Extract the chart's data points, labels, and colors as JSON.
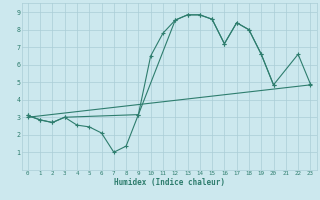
{
  "xlabel": "Humidex (Indice chaleur)",
  "bg_color": "#cce8ee",
  "line_color": "#2e7d6e",
  "grid_color": "#aacdd6",
  "xlim": [
    -0.5,
    23.5
  ],
  "ylim": [
    0,
    9.5
  ],
  "xticks": [
    0,
    1,
    2,
    3,
    4,
    5,
    6,
    7,
    8,
    9,
    10,
    11,
    12,
    13,
    14,
    15,
    16,
    17,
    18,
    19,
    20,
    21,
    22,
    23
  ],
  "yticks": [
    1,
    2,
    3,
    4,
    5,
    6,
    7,
    8,
    9
  ],
  "line1_x": [
    0,
    1,
    2,
    3,
    4,
    5,
    6,
    7,
    8,
    9,
    10,
    11,
    12,
    13,
    14,
    15,
    16,
    17,
    18,
    19,
    20
  ],
  "line1_y": [
    3.1,
    2.85,
    2.7,
    3.0,
    2.55,
    2.45,
    2.1,
    1.0,
    1.35,
    3.15,
    6.5,
    7.8,
    8.55,
    8.85,
    8.85,
    8.6,
    7.2,
    8.4,
    8.0,
    6.6,
    4.85
  ],
  "line2_x": [
    0,
    1,
    2,
    3,
    9,
    12,
    13,
    14,
    15,
    16,
    17,
    18,
    19,
    20,
    22,
    23
  ],
  "line2_y": [
    3.1,
    2.85,
    2.7,
    3.0,
    3.15,
    8.55,
    8.85,
    8.85,
    8.6,
    7.2,
    8.4,
    8.0,
    6.6,
    4.85,
    6.6,
    4.9
  ],
  "line3_x": [
    0,
    23
  ],
  "line3_y": [
    3.0,
    4.85
  ]
}
